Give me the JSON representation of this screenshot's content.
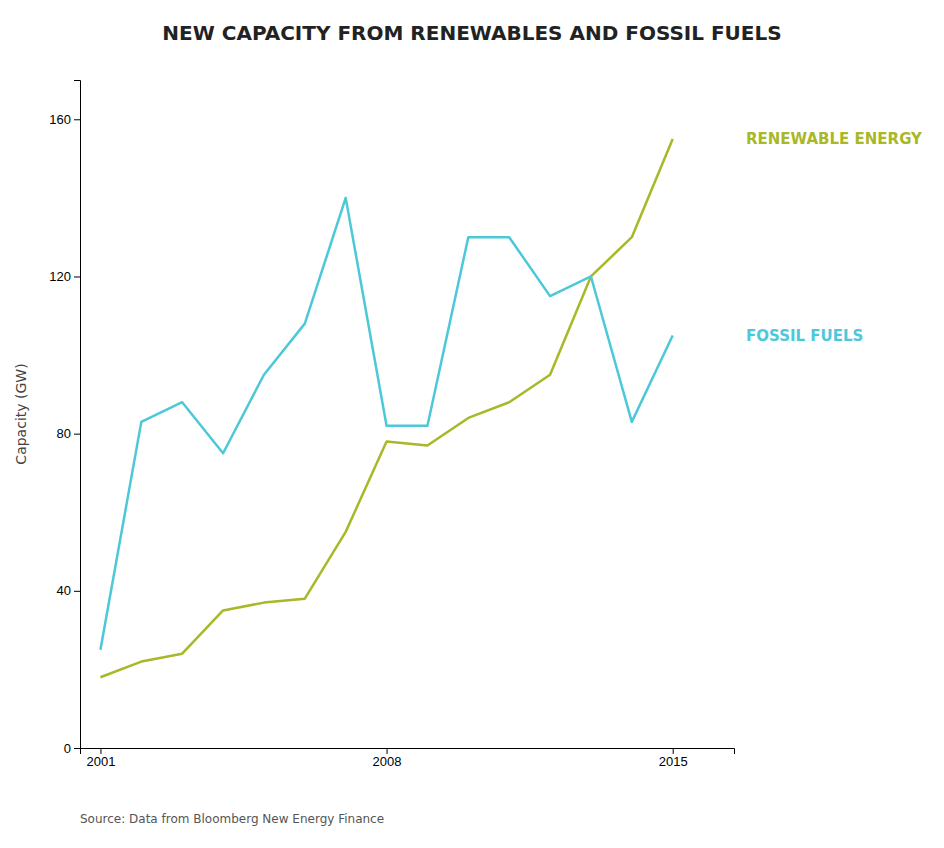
{
  "chart_data": {
    "type": "line",
    "title": "NEW CAPACITY FROM RENEWABLES AND FOSSIL FUELS",
    "ylabel": "Capacity (GW)",
    "source": "Source: Data from Bloomberg New Energy Finance",
    "x": [
      2001,
      2002,
      2003,
      2004,
      2005,
      2006,
      2007,
      2008,
      2009,
      2010,
      2011,
      2012,
      2013,
      2014,
      2015
    ],
    "series": [
      {
        "name": "RENEWABLE ENERGY",
        "color": "#a8b826",
        "values": [
          18,
          22,
          24,
          35,
          37,
          38,
          55,
          78,
          77,
          84,
          88,
          95,
          120,
          130,
          155
        ]
      },
      {
        "name": "FOSSIL FUELS",
        "color": "#4dc8d8",
        "values": [
          25,
          83,
          88,
          75,
          95,
          108,
          140,
          82,
          82,
          130,
          130,
          115,
          120,
          83,
          105
        ]
      }
    ],
    "xlim": [
      2000.5,
      2016.5
    ],
    "xticks": [
      2001,
      2008,
      2015
    ],
    "ylim": [
      0,
      170
    ],
    "yticks": [
      0,
      40,
      80,
      120,
      160
    ],
    "grid": false
  }
}
